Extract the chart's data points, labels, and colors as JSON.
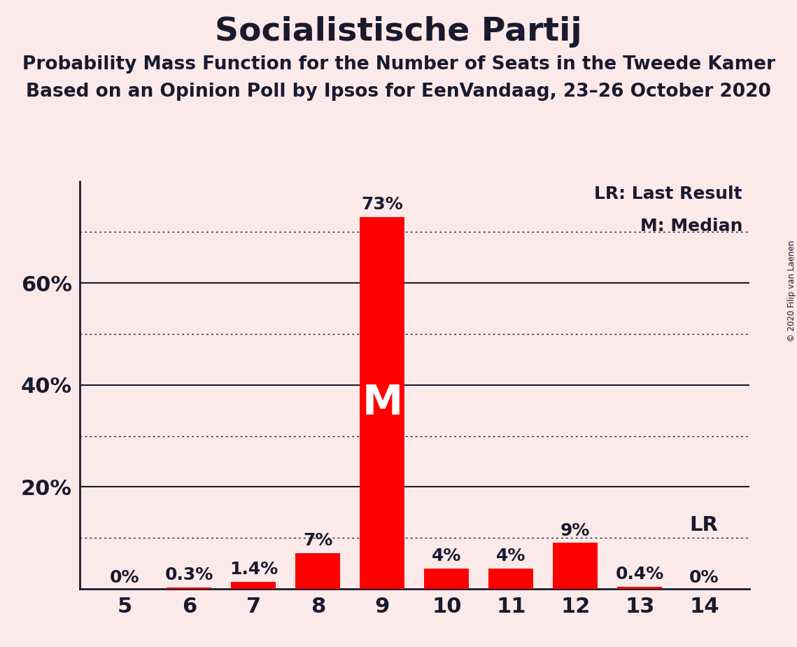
{
  "title": "Socialistische Partij",
  "subtitle1": "Probability Mass Function for the Number of Seats in the Tweede Kamer",
  "subtitle2": "Based on an Opinion Poll by Ipsos for EenVandaag, 23–26 October 2020",
  "copyright": "© 2020 Filip van Laenen",
  "seats": [
    5,
    6,
    7,
    8,
    9,
    10,
    11,
    12,
    13,
    14
  ],
  "probabilities": [
    0.0,
    0.3,
    1.4,
    7.0,
    73.0,
    4.0,
    4.0,
    9.0,
    0.4,
    0.0
  ],
  "bar_color": "#FF0000",
  "background_color": "#FCEAEA",
  "median_seat": 9,
  "last_result_seat": 14,
  "bar_labels": [
    "0%",
    "0.3%",
    "1.4%",
    "7%",
    "73%",
    "4%",
    "4%",
    "9%",
    "0.4%",
    "0%"
  ],
  "yticks_solid": [
    20,
    40,
    60
  ],
  "yticks_dotted": [
    10,
    30,
    50,
    70
  ],
  "ylim": [
    0,
    80
  ],
  "legend_lr": "LR: Last Result",
  "legend_m": "M: Median",
  "title_fontsize": 34,
  "subtitle_fontsize": 19,
  "label_fontsize": 18,
  "axis_fontsize": 22,
  "bar_label_fontsize": 18,
  "text_color": "#1a1a2e"
}
